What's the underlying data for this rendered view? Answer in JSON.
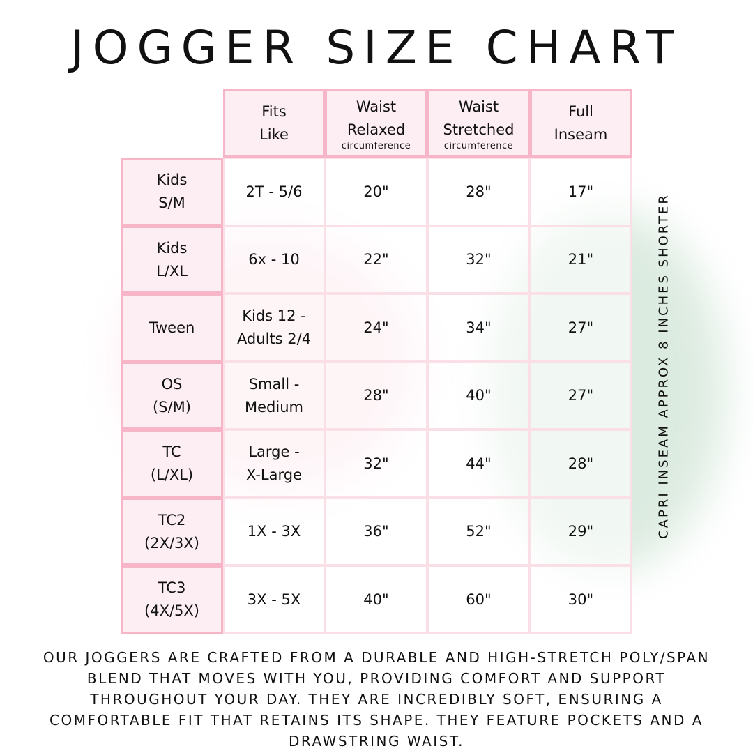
{
  "title": "JOGGER SIZE CHART",
  "headers": [
    {
      "line1": "Fits\nLike",
      "sub": ""
    },
    {
      "line1": "Waist\nRelaxed",
      "sub": "circumference"
    },
    {
      "line1": "Waist\nStretched",
      "sub": "circumference"
    },
    {
      "line1": "Full\nInseam",
      "sub": ""
    }
  ],
  "rows": [
    {
      "size": "Kids\nS/M",
      "fits": "2T - 5/6",
      "relaxed": "20\"",
      "stretched": "28\"",
      "inseam": "17\""
    },
    {
      "size": "Kids\nL/XL",
      "fits": "6x - 10",
      "relaxed": "22\"",
      "stretched": "32\"",
      "inseam": "21\""
    },
    {
      "size": "Tween",
      "fits": "Kids 12 -\nAdults 2/4",
      "relaxed": "24\"",
      "stretched": "34\"",
      "inseam": "27\""
    },
    {
      "size": "OS\n(S/M)",
      "fits": "Small -\nMedium",
      "relaxed": "28\"",
      "stretched": "40\"",
      "inseam": "27\""
    },
    {
      "size": "TC\n(L/XL)",
      "fits": "Large -\nX-Large",
      "relaxed": "32\"",
      "stretched": "44\"",
      "inseam": "28\""
    },
    {
      "size": "TC2\n(2X/3X)",
      "fits": "1X - 3X",
      "relaxed": "36\"",
      "stretched": "52\"",
      "inseam": "29\""
    },
    {
      "size": "TC3\n(4X/5X)",
      "fits": "3X - 5X",
      "relaxed": "40\"",
      "stretched": "60\"",
      "inseam": "30\""
    }
  ],
  "side_note": "CAPRI INSEAM APPROX 8 INCHES SHORTER",
  "description": "Our joggers are crafted from a durable and high-stretch poly/span blend that moves with you, providing comfort and support throughout your day. They are incredibly soft, ensuring a comfortable fit that retains its shape. They feature pockets and a drawstring waist.",
  "colors": {
    "header_bg": "#fdeef3",
    "header_border": "#f7b6c8",
    "cell_border": "#fbdfe7"
  }
}
